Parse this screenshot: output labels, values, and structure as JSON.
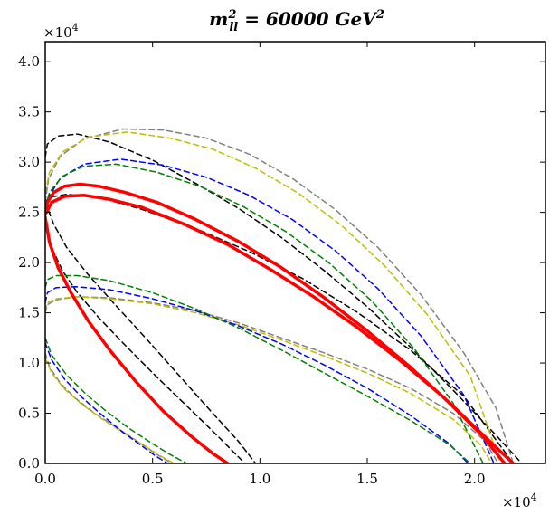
{
  "chart_data": {
    "type": "line",
    "title": {
      "base": "m",
      "superscript": "2",
      "subscript": "ll",
      "rest": " = 60000 GeV",
      "rest_superscript": "2"
    },
    "x_tick_labels": [
      "0.0",
      "0.5",
      "1.0",
      "1.5",
      "2.0"
    ],
    "y_tick_labels": [
      "0.0",
      "0.5",
      "1.0",
      "1.5",
      "2.0",
      "2.5",
      "3.0",
      "3.5",
      "4.0"
    ],
    "x_tick_values": [
      0,
      5000,
      10000,
      15000,
      20000
    ],
    "y_tick_values": [
      0,
      5000,
      10000,
      15000,
      20000,
      25000,
      30000,
      35000,
      40000
    ],
    "x_exponent": {
      "base": "×10",
      "power": "4"
    },
    "y_exponent": {
      "base": "×10",
      "power": "4"
    },
    "xlim": [
      0,
      23300
    ],
    "ylim": [
      0,
      42000
    ],
    "series": [
      {
        "name": "black-outer",
        "color": "#000000",
        "dashed": true,
        "width": 1.5,
        "x": [
          0,
          100,
          600,
          1500,
          3000,
          5000,
          7000,
          9000,
          11000,
          13000,
          15000,
          17000,
          19000,
          21000,
          22200
        ],
        "y": [
          30500,
          31800,
          32600,
          32800,
          32000,
          30200,
          27900,
          25400,
          22500,
          19200,
          15600,
          11600,
          7300,
          2800,
          0
        ]
      },
      {
        "name": "black-inner",
        "color": "#000000",
        "dashed": true,
        "width": 1.5,
        "x": [
          0,
          200,
          1000,
          2500,
          4500,
          7000,
          9500,
          12000,
          14500,
          17000,
          19500,
          21800
        ],
        "y": [
          26000,
          26500,
          26800,
          26500,
          25300,
          23400,
          21100,
          18400,
          15100,
          11300,
          6700,
          0
        ]
      },
      {
        "name": "black-low-1",
        "color": "#000000",
        "dashed": true,
        "width": 1.5,
        "x": [
          0,
          300,
          800,
          1500,
          2500,
          3800,
          5200,
          6700,
          8000,
          9300
        ],
        "y": [
          24000,
          21500,
          19200,
          17000,
          14500,
          11600,
          8600,
          5500,
          2800,
          0
        ]
      },
      {
        "name": "black-low-2",
        "color": "#000000",
        "dashed": true,
        "width": 1.5,
        "x": [
          0,
          400,
          1000,
          2000,
          3300,
          4800,
          6300,
          7800,
          9000,
          9800
        ],
        "y": [
          26000,
          23800,
          21500,
          18800,
          15700,
          12200,
          8600,
          5000,
          2200,
          0
        ]
      },
      {
        "name": "gray-outer",
        "color": "#808080",
        "dashed": true,
        "width": 1.5,
        "x": [
          0,
          150,
          700,
          1800,
          3600,
          5500,
          7500,
          9500,
          11500,
          13500,
          15500,
          17500,
          19500,
          21000,
          21800
        ],
        "y": [
          26000,
          28300,
          30600,
          32300,
          33300,
          33200,
          32400,
          30800,
          28400,
          25300,
          21500,
          16800,
          11000,
          5500,
          0
        ]
      },
      {
        "name": "gray-lower",
        "color": "#808080",
        "dashed": true,
        "width": 1.5,
        "x": [
          0,
          100,
          500,
          1500,
          3000,
          5000,
          7000,
          9000,
          11000,
          13000,
          15000,
          17000,
          19000,
          20500,
          21100
        ],
        "y": [
          15000,
          15800,
          16300,
          16600,
          16500,
          16000,
          15200,
          14000,
          12500,
          11000,
          9400,
          7500,
          5000,
          2200,
          0
        ]
      },
      {
        "name": "gray-low",
        "color": "#808080",
        "dashed": true,
        "width": 1.5,
        "x": [
          0,
          200,
          700,
          1400,
          2300,
          3300,
          4300,
          5200,
          5900
        ],
        "y": [
          11000,
          9600,
          8000,
          6500,
          5000,
          3600,
          2200,
          900,
          0
        ]
      },
      {
        "name": "yellow-outer",
        "color": "#bfbf00",
        "dashed": true,
        "width": 1.5,
        "x": [
          0,
          200,
          800,
          2000,
          3800,
          5800,
          7800,
          9800,
          11800,
          13800,
          15800,
          17800,
          19800,
          21200
        ],
        "y": [
          27000,
          29000,
          31000,
          32500,
          33000,
          32400,
          31300,
          29400,
          26900,
          23700,
          19700,
          14800,
          8700,
          0
        ]
      },
      {
        "name": "yellow-lower",
        "color": "#bfbf00",
        "dashed": true,
        "width": 1.5,
        "x": [
          0,
          100,
          500,
          1500,
          3000,
          5000,
          7000,
          9000,
          11000,
          13000,
          15000,
          17000,
          19000,
          20300,
          20800
        ],
        "y": [
          15200,
          16000,
          16400,
          16600,
          16400,
          15900,
          15000,
          13800,
          12300,
          10700,
          9000,
          7000,
          4400,
          1800,
          0
        ]
      },
      {
        "name": "yellow-low",
        "color": "#bfbf00",
        "dashed": true,
        "width": 1.5,
        "x": [
          0,
          300,
          900,
          1700,
          2600,
          3600,
          4600,
          5400,
          6000
        ],
        "y": [
          10500,
          9000,
          7400,
          5900,
          4500,
          3100,
          1800,
          700,
          0
        ]
      },
      {
        "name": "blue-outer",
        "color": "#0000ff",
        "dashed": true,
        "width": 1.5,
        "x": [
          0,
          150,
          700,
          1800,
          3500,
          5500,
          7500,
          9500,
          11500,
          13500,
          15500,
          17500,
          19500,
          20900
        ],
        "y": [
          24500,
          26500,
          28400,
          29800,
          30300,
          29700,
          28500,
          26700,
          24300,
          21200,
          17400,
          12700,
          6800,
          0
        ]
      },
      {
        "name": "blue-lower",
        "color": "#0000ff",
        "dashed": true,
        "width": 1.5,
        "x": [
          0,
          100,
          500,
          1400,
          3000,
          5000,
          7000,
          9000,
          11000,
          13000,
          15000,
          17000,
          18800,
          19700
        ],
        "y": [
          16000,
          17000,
          17500,
          17600,
          17300,
          16400,
          15200,
          13700,
          11900,
          9800,
          7500,
          4800,
          2000,
          0
        ]
      },
      {
        "name": "blue-low",
        "color": "#0000ff",
        "dashed": true,
        "width": 1.5,
        "x": [
          0,
          300,
          900,
          1700,
          2600,
          3500,
          4400,
          5100,
          5700
        ],
        "y": [
          12000,
          10300,
          8400,
          6600,
          4900,
          3300,
          1900,
          800,
          0
        ]
      },
      {
        "name": "green-outer",
        "color": "#008000",
        "dashed": true,
        "width": 1.5,
        "x": [
          0,
          200,
          800,
          1800,
          3300,
          5200,
          7200,
          9200,
          11200,
          13200,
          15200,
          17200,
          19000,
          20400
        ],
        "y": [
          25500,
          27000,
          28600,
          29600,
          29800,
          29000,
          27600,
          25600,
          23100,
          20000,
          16200,
          11400,
          6000,
          0
        ]
      },
      {
        "name": "green-lower",
        "color": "#008000",
        "dashed": true,
        "width": 1.5,
        "x": [
          0,
          100,
          500,
          1500,
          3000,
          5000,
          7000,
          9000,
          11000,
          13000,
          15000,
          17000,
          18800,
          19800
        ],
        "y": [
          17500,
          18300,
          18700,
          18700,
          18200,
          17000,
          15400,
          13500,
          11300,
          9000,
          6700,
          4300,
          1900,
          0
        ]
      },
      {
        "name": "green-low",
        "color": "#008000",
        "dashed": true,
        "width": 1.5,
        "x": [
          0,
          300,
          1000,
          1900,
          2900,
          3900,
          4900,
          5800,
          6600
        ],
        "y": [
          12500,
          10800,
          8800,
          6900,
          5100,
          3500,
          2100,
          900,
          0
        ]
      },
      {
        "name": "red-outer",
        "color": "#ff0000",
        "dashed": false,
        "width": 3.5,
        "x": [
          0,
          100,
          400,
          900,
          1600,
          2500,
          3700,
          5200,
          7000,
          9000,
          11000,
          13000,
          15000,
          17000,
          19000,
          20800,
          21800
        ],
        "y": [
          24800,
          26000,
          27000,
          27600,
          27800,
          27600,
          27000,
          26000,
          24300,
          22100,
          19500,
          16500,
          13200,
          9600,
          5700,
          2000,
          0
        ]
      },
      {
        "name": "red-inner",
        "color": "#ff0000",
        "dashed": false,
        "width": 3.5,
        "x": [
          0,
          300,
          900,
          1800,
          3000,
          4500,
          6500,
          8500,
          10500,
          12500,
          14500,
          16500,
          18500,
          20300,
          21400
        ],
        "y": [
          24800,
          26000,
          26600,
          26700,
          26300,
          25500,
          23800,
          21800,
          19300,
          16600,
          13600,
          10300,
          6700,
          2900,
          0
        ]
      },
      {
        "name": "red-low",
        "color": "#ff0000",
        "dashed": false,
        "width": 3.5,
        "x": [
          0,
          200,
          600,
          1200,
          2000,
          3000,
          4200,
          5500,
          6800,
          7800,
          8500
        ],
        "y": [
          24500,
          22000,
          19500,
          17000,
          14200,
          11300,
          8200,
          5200,
          2700,
          1000,
          0
        ]
      }
    ]
  }
}
